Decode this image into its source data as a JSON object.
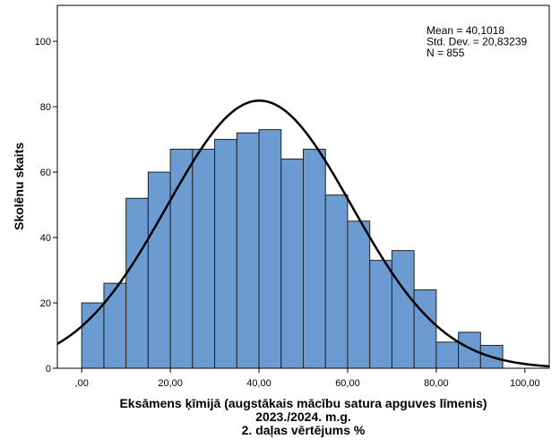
{
  "chart_data": {
    "type": "histogram",
    "title": "",
    "xlabel_lines": [
      "Eksāmens ķīmijā (augstākais mācību satura apguves līmenis)",
      "2023./2024. m.g.",
      "2. daļas vērtējums %"
    ],
    "ylabel": "Skolēnu skaits",
    "bin_width": 5,
    "bins": [
      {
        "start": 0,
        "end": 5,
        "count": 20
      },
      {
        "start": 5,
        "end": 10,
        "count": 26
      },
      {
        "start": 10,
        "end": 15,
        "count": 52
      },
      {
        "start": 15,
        "end": 20,
        "count": 60
      },
      {
        "start": 20,
        "end": 25,
        "count": 67
      },
      {
        "start": 25,
        "end": 30,
        "count": 67
      },
      {
        "start": 30,
        "end": 35,
        "count": 70
      },
      {
        "start": 35,
        "end": 40,
        "count": 72
      },
      {
        "start": 40,
        "end": 45,
        "count": 73
      },
      {
        "start": 45,
        "end": 50,
        "count": 64
      },
      {
        "start": 50,
        "end": 55,
        "count": 67
      },
      {
        "start": 55,
        "end": 60,
        "count": 53
      },
      {
        "start": 60,
        "end": 65,
        "count": 45
      },
      {
        "start": 65,
        "end": 70,
        "count": 33
      },
      {
        "start": 70,
        "end": 75,
        "count": 36
      },
      {
        "start": 75,
        "end": 80,
        "count": 24
      },
      {
        "start": 80,
        "end": 85,
        "count": 8
      },
      {
        "start": 85,
        "end": 90,
        "count": 11
      },
      {
        "start": 90,
        "end": 95,
        "count": 7
      }
    ],
    "normal_curve": {
      "mean": 40.1018,
      "std": 20.83239,
      "n": 855
    },
    "stats_lines": [
      "Mean = 40,1018",
      "Std. Dev. = 20,83239",
      "N = 855"
    ],
    "xlim": [
      -5.5,
      105.5
    ],
    "ylim": [
      0,
      111
    ],
    "x_ticks": [
      0,
      20,
      40,
      60,
      80,
      100
    ],
    "x_tick_labels": [
      ",00",
      "20,00",
      "40,00",
      "60,00",
      "80,00",
      "100,00"
    ],
    "y_ticks": [
      0,
      20,
      40,
      60,
      80,
      100
    ],
    "y_tick_labels": [
      "0",
      "20",
      "40",
      "60",
      "80",
      "100"
    ],
    "colors": {
      "bar_fill": "#6b9bd1",
      "bar_stroke": "#222222",
      "curve": "#000000",
      "frame": "#000000"
    },
    "grid": false
  }
}
